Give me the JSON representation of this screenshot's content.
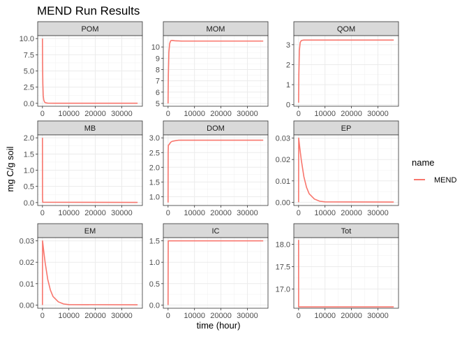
{
  "chart_data": {
    "type": "line",
    "title": "MEND Run Results",
    "xlabel": "time (hour)",
    "ylabel": "mg C/g soil",
    "grid": true,
    "legend": {
      "title": "name",
      "position": "right",
      "entries": [
        {
          "name": "MEND",
          "color": "#F8766D"
        }
      ]
    },
    "x_ticks": [
      0,
      10000,
      20000,
      30000
    ],
    "xlim": [
      -1800,
      37800
    ],
    "panels": [
      {
        "label": "POM",
        "ylim": [
          -0.45,
          10.45
        ],
        "y_ticks": [
          0,
          2.5,
          5,
          7.5,
          10
        ],
        "y_tick_labels": [
          "0.0",
          "2.5",
          "5.0",
          "7.5",
          "10.0"
        ],
        "series": [
          {
            "name": "MEND",
            "x": [
              0,
              50,
              150,
              300,
              500,
              800,
              1200,
              2000,
              5000,
              36000
            ],
            "y": [
              10.0,
              6.0,
              3.0,
              1.2,
              0.5,
              0.2,
              0.08,
              0.03,
              0.02,
              0.02
            ]
          }
        ]
      },
      {
        "label": "MOM",
        "ylim": [
          4.75,
          11.0
        ],
        "y_ticks": [
          5,
          6,
          7,
          8,
          9,
          10
        ],
        "y_tick_labels": [
          "5",
          "6",
          "7",
          "8",
          "9",
          "10"
        ],
        "series": [
          {
            "name": "MEND",
            "x": [
              0,
              100,
              300,
              600,
              1000,
              1500,
              2500,
              5000,
              36000
            ],
            "y": [
              5.0,
              7.5,
              9.5,
              10.3,
              10.55,
              10.58,
              10.55,
              10.52,
              10.52
            ]
          }
        ]
      },
      {
        "label": "QOM",
        "ylim": [
          -0.08,
          3.45
        ],
        "y_ticks": [
          0,
          1,
          2,
          3
        ],
        "y_tick_labels": [
          "0",
          "1",
          "2",
          "3"
        ],
        "series": [
          {
            "name": "MEND",
            "x": [
              0,
              100,
              300,
              600,
              1000,
              1500,
              2000,
              36000
            ],
            "y": [
              0.1,
              1.5,
              2.7,
              3.1,
              3.2,
              3.22,
              3.23,
              3.23
            ]
          }
        ]
      },
      {
        "label": "MB",
        "ylim": [
          -0.09,
          2.09
        ],
        "y_ticks": [
          0,
          0.5,
          1,
          1.5,
          2
        ],
        "y_tick_labels": [
          "0.0",
          "0.5",
          "1.0",
          "1.5",
          "2.0"
        ],
        "series": [
          {
            "name": "MEND",
            "x": [
              0,
              30,
              100,
              36000
            ],
            "y": [
              2.0,
              0.15,
              0.01,
              0.005
            ]
          }
        ]
      },
      {
        "label": "DOM",
        "ylim": [
          0.7,
          3.1
        ],
        "y_ticks": [
          1,
          1.5,
          2,
          2.5,
          3
        ],
        "y_tick_labels": [
          "1.0",
          "1.5",
          "2.0",
          "2.5",
          "3.0"
        ],
        "series": [
          {
            "name": "MEND",
            "x": [
              0,
              40,
              100,
              300,
              600,
              1000,
              1500,
              2500,
              4000,
              6000,
              36000
            ],
            "y": [
              0.8,
              2.5,
              2.75,
              2.76,
              2.8,
              2.85,
              2.88,
              2.9,
              2.92,
              2.92,
              2.92
            ]
          }
        ]
      },
      {
        "label": "EP",
        "ylim": [
          -0.0015,
          0.0315
        ],
        "y_ticks": [
          0,
          0.01,
          0.02,
          0.03
        ],
        "y_tick_labels": [
          "0.00",
          "0.01",
          "0.02",
          "0.03"
        ],
        "series": [
          {
            "name": "MEND",
            "x": [
              0,
              40,
              500,
              1000,
              2000,
              3000,
              4000,
              6000,
              8000,
              10000,
              36000
            ],
            "y": [
              0.0,
              0.03,
              0.025,
              0.02,
              0.012,
              0.007,
              0.004,
              0.0015,
              0.0005,
              0.0002,
              0.0001
            ]
          }
        ]
      },
      {
        "label": "EM",
        "ylim": [
          -0.0015,
          0.0315
        ],
        "y_ticks": [
          0,
          0.01,
          0.02,
          0.03
        ],
        "y_tick_labels": [
          "0.00",
          "0.01",
          "0.02",
          "0.03"
        ],
        "series": [
          {
            "name": "MEND",
            "x": [
              0,
              40,
              500,
              1000,
              2000,
              3000,
              4000,
              6000,
              8000,
              10000,
              36000
            ],
            "y": [
              0.0,
              0.03,
              0.025,
              0.02,
              0.012,
              0.007,
              0.004,
              0.0015,
              0.0005,
              0.0002,
              0.0001
            ]
          }
        ]
      },
      {
        "label": "IC",
        "ylim": [
          -0.075,
          1.575
        ],
        "y_ticks": [
          0,
          0.5,
          1,
          1.5
        ],
        "y_tick_labels": [
          "0.0",
          "0.5",
          "1.0",
          "1.5"
        ],
        "series": [
          {
            "name": "MEND",
            "x": [
              0,
              60,
              36000
            ],
            "y": [
              0.0,
              1.5,
              1.5
            ]
          }
        ]
      },
      {
        "label": "Tot",
        "ylim": [
          16.57,
          18.15
        ],
        "y_ticks": [
          17.0,
          17.5,
          18.0
        ],
        "y_tick_labels": [
          "17.0",
          "17.5",
          "18.0"
        ],
        "series": [
          {
            "name": "MEND",
            "x": [
              0,
              15,
              36000
            ],
            "y": [
              18.1,
              16.6,
              16.6
            ]
          }
        ]
      }
    ]
  }
}
